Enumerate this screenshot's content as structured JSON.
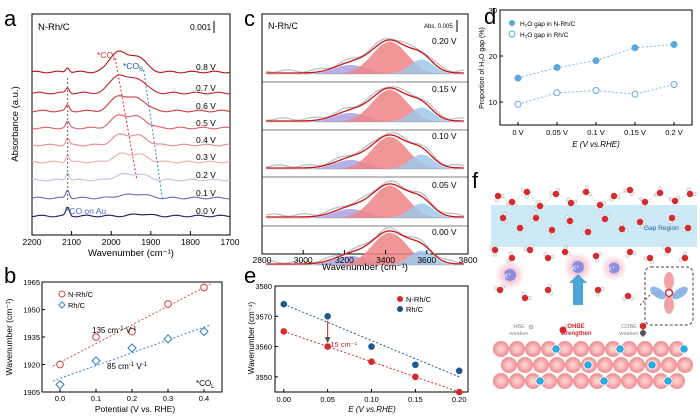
{
  "figure": {
    "panel_letters": [
      "a",
      "b",
      "c",
      "d",
      "e",
      "f"
    ],
    "colors": {
      "red": "#d62a2f",
      "red_open": "#d94a4a",
      "blue": "#1f5a8e",
      "blue_open": "#3a86c4",
      "light_blue": "#7fc4e8",
      "pink": "#f4a6a6",
      "purple": "#8c84d8",
      "gap": "#bfe3f3",
      "atom_blue": "#30a8e0",
      "surface": "#f6a4a6"
    }
  },
  "chart_data": [
    {
      "panel": "a",
      "type": "line",
      "sample_label": "N-Rh/C",
      "scale_label": "0.001",
      "xlabel": "Wavenumber (cm⁻¹)",
      "ylabel": "Absorbance (a.u.)",
      "xlim": [
        2200,
        1700
      ],
      "xticks": [
        "2200",
        "2100",
        "2000",
        "1900",
        "1800",
        "1700"
      ],
      "series_labels": [
        "0.8 V",
        "0.7 V",
        "0.6 V",
        "0.5 V",
        "0.4 V",
        "0.3 V",
        "0.2 V",
        "0.1 V",
        "0.0 V"
      ],
      "annotations": [
        "*CO",
        "L",
        "*CO",
        "B",
        "*CO on Au"
      ],
      "peak_positions": {
        "co_au": 2110,
        "co_l": 1985,
        "co_b": 1935
      }
    },
    {
      "panel": "b",
      "type": "scatter",
      "xlabel": "Potential (V vs. RHE)",
      "ylabel": "Wavenumber (cm⁻¹)",
      "xlim": [
        -0.05,
        0.45
      ],
      "ylim": [
        1905,
        1965
      ],
      "xticks": [
        "0.0",
        "0.1",
        "0.2",
        "0.3",
        "0.4"
      ],
      "yticks": [
        "1905",
        "1920",
        "1935",
        "1950",
        "1965"
      ],
      "x": [
        0.0,
        0.1,
        0.2,
        0.3,
        0.4
      ],
      "series": [
        {
          "name": "N-Rh/C",
          "values": [
            1920,
            1935,
            1938,
            1953,
            1962
          ]
        },
        {
          "name": "Rh/C",
          "values": [
            1909,
            1922,
            1929,
            1934,
            1938
          ]
        }
      ],
      "annotations": [
        {
          "text": "135 cm",
          "sup": "-1",
          "tail": " V",
          "sup2": "-1"
        },
        {
          "text": "85 cm",
          "sup": "-1",
          "tail": " V",
          "sup2": "-1"
        },
        {
          "text": "*CO",
          "sub": "L"
        }
      ]
    },
    {
      "panel": "c",
      "type": "area",
      "sample_label": "N-Rh/C",
      "scale_label": "Abs. 0.005",
      "xlabel": "Wavenumber (cm⁻¹)",
      "xlim": [
        2800,
        3800
      ],
      "xticks": [
        "2800",
        "3000",
        "3200",
        "3400",
        "3600",
        "3800"
      ],
      "series_labels": [
        "0.20 V",
        "0.15 V",
        "0.10 V",
        "0.05 V",
        "0.00 V"
      ],
      "components": [
        {
          "name": "purple",
          "center": 3230,
          "width": 110,
          "amp": 0.28
        },
        {
          "name": "red",
          "center": 3420,
          "width": 120,
          "amp": 1.0
        },
        {
          "name": "blue",
          "center": 3575,
          "width": 80,
          "amp": 0.45
        }
      ]
    },
    {
      "panel": "d",
      "type": "scatter",
      "xlabel": "E (V vs.RHE)",
      "ylabel": "Proportion of H₂O gap (%)",
      "ylim": [
        5,
        30
      ],
      "yticks": [
        "10",
        "20",
        "30"
      ],
      "categories": [
        "0 V",
        "0.05 V",
        "0.1 V",
        "0.15 V",
        "0.2 V"
      ],
      "series": [
        {
          "name": "H₂O gap in N-Rh/C",
          "values": [
            15.2,
            17.5,
            19.0,
            21.8,
            22.5
          ]
        },
        {
          "name": "H₂O gap in Rh/C",
          "values": [
            9.5,
            12.0,
            12.5,
            11.7,
            13.8
          ]
        }
      ]
    },
    {
      "panel": "e",
      "type": "scatter",
      "xlabel": "E (V vs.RHE)",
      "ylabel": "Wavenumber (cm⁻¹)",
      "xlim": [
        -0.01,
        0.21
      ],
      "ylim": [
        3545,
        3580
      ],
      "xticks": [
        "0.00",
        "0.05",
        "0.10",
        "0.15",
        "0.20"
      ],
      "yticks": [
        "3550",
        "3560",
        "3570",
        "3580"
      ],
      "x": [
        0.0,
        0.05,
        0.1,
        0.15,
        0.2
      ],
      "series": [
        {
          "name": "N-Rh/C",
          "values": [
            3565,
            3560,
            3555,
            3550,
            3545
          ]
        },
        {
          "name": "Rh/C",
          "values": [
            3574,
            3570,
            3560,
            3554,
            3552
          ]
        }
      ],
      "annotations": [
        "~15 cm⁻¹"
      ]
    }
  ],
  "schematic": {
    "panel": "f",
    "labels": {
      "gap": "Gap Region",
      "cation": "K",
      "cation_sup": "+",
      "hbe": "HBE",
      "hbe2": "weaken",
      "ohbe": "OHBE",
      "ohbe2": "strengthen",
      "cobe": "COBE",
      "cobe2": "weaken"
    }
  }
}
